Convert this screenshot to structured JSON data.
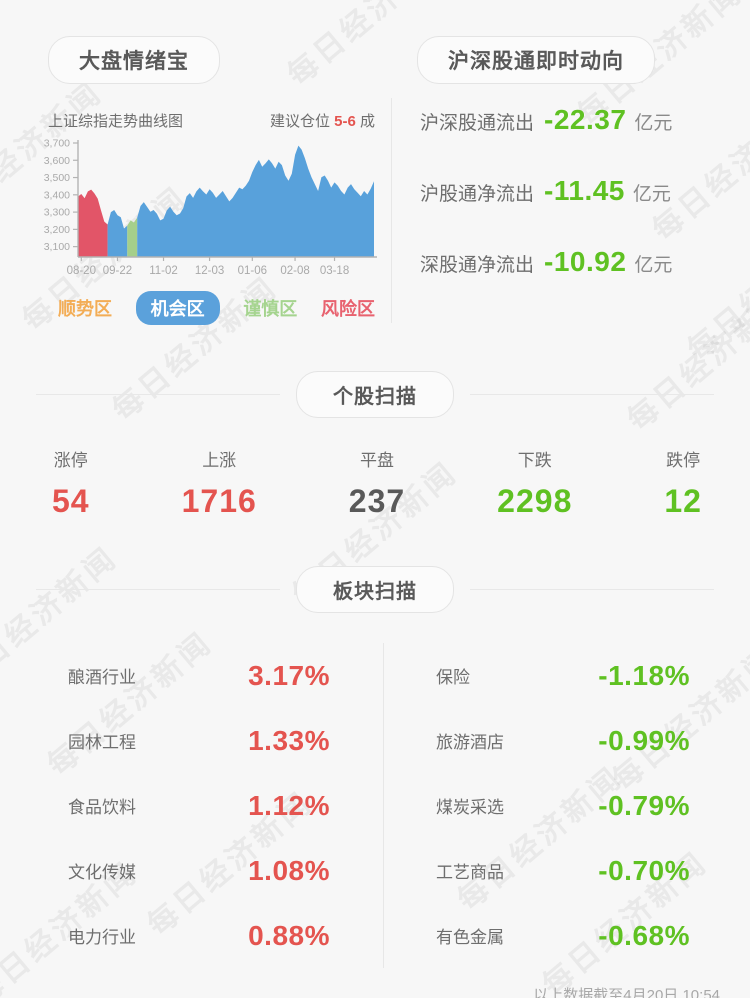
{
  "page": {
    "watermark_text": "每日经济新闻",
    "footer_note": "以上数据截至4月20日 10:54"
  },
  "header": {
    "left_title": "大盘情绪宝",
    "right_title": "沪深股通即时动向"
  },
  "chart_panel": {
    "title": "上证综指走势曲线图",
    "position_prefix": "建议仓位",
    "position_value": "5-6",
    "position_suffix": "成"
  },
  "chart_data": {
    "type": "area",
    "title": "上证综指走势曲线图",
    "x_ticks": [
      "08-20",
      "09-22",
      "11-02",
      "12-03",
      "01-06",
      "02-08",
      "03-18"
    ],
    "x_tick_indices": [
      1,
      12,
      26,
      40,
      53,
      66,
      78
    ],
    "y_ticks": [
      "3,700",
      "3,600",
      "3,500",
      "3,400",
      "3,300",
      "3,200",
      "3,100"
    ],
    "ylim": [
      3040,
      3700
    ],
    "grid": false,
    "legend_position": "bottom",
    "zone_colors": {
      "r": "#e25568",
      "o": "#58a1db",
      "c": "#a5cf8b"
    },
    "zone_names": {
      "r": "风险区",
      "o": "机会区",
      "c": "谨慎区"
    },
    "legend": [
      {
        "label": "顺势区",
        "color": "#f3ad56",
        "active": false
      },
      {
        "label": "机会区",
        "color": "#58a1db",
        "active": true
      },
      {
        "label": "谨慎区",
        "color": "#a5d48f",
        "active": false
      },
      {
        "label": "风险区",
        "color": "#e8626f",
        "active": false
      }
    ],
    "series": [
      {
        "name": "上证综指",
        "points": [
          [
            3390,
            "r"
          ],
          [
            3405,
            "r"
          ],
          [
            3380,
            "r"
          ],
          [
            3420,
            "r"
          ],
          [
            3430,
            "r"
          ],
          [
            3408,
            "r"
          ],
          [
            3378,
            "r"
          ],
          [
            3310,
            "r"
          ],
          [
            3245,
            "r"
          ],
          [
            3228,
            "o"
          ],
          [
            3300,
            "o"
          ],
          [
            3312,
            "o"
          ],
          [
            3282,
            "o"
          ],
          [
            3270,
            "o"
          ],
          [
            3205,
            "o"
          ],
          [
            3222,
            "c"
          ],
          [
            3252,
            "c"
          ],
          [
            3240,
            "c"
          ],
          [
            3268,
            "o"
          ],
          [
            3335,
            "o"
          ],
          [
            3358,
            "o"
          ],
          [
            3330,
            "o"
          ],
          [
            3302,
            "o"
          ],
          [
            3312,
            "o"
          ],
          [
            3290,
            "o"
          ],
          [
            3252,
            "o"
          ],
          [
            3262,
            "o"
          ],
          [
            3310,
            "o"
          ],
          [
            3332,
            "o"
          ],
          [
            3302,
            "o"
          ],
          [
            3282,
            "o"
          ],
          [
            3292,
            "o"
          ],
          [
            3322,
            "o"
          ],
          [
            3390,
            "o"
          ],
          [
            3410,
            "o"
          ],
          [
            3382,
            "o"
          ],
          [
            3420,
            "o"
          ],
          [
            3442,
            "o"
          ],
          [
            3420,
            "o"
          ],
          [
            3402,
            "o"
          ],
          [
            3432,
            "o"
          ],
          [
            3412,
            "o"
          ],
          [
            3382,
            "o"
          ],
          [
            3402,
            "o"
          ],
          [
            3422,
            "o"
          ],
          [
            3392,
            "o"
          ],
          [
            3362,
            "o"
          ],
          [
            3382,
            "o"
          ],
          [
            3412,
            "o"
          ],
          [
            3442,
            "o"
          ],
          [
            3432,
            "o"
          ],
          [
            3452,
            "o"
          ],
          [
            3482,
            "o"
          ],
          [
            3532,
            "o"
          ],
          [
            3572,
            "o"
          ],
          [
            3602,
            "o"
          ],
          [
            3562,
            "o"
          ],
          [
            3582,
            "o"
          ],
          [
            3605,
            "o"
          ],
          [
            3583,
            "o"
          ],
          [
            3552,
            "o"
          ],
          [
            3592,
            "o"
          ],
          [
            3572,
            "o"
          ],
          [
            3512,
            "o"
          ],
          [
            3482,
            "o"
          ],
          [
            3522,
            "o"
          ],
          [
            3632,
            "o"
          ],
          [
            3685,
            "o"
          ],
          [
            3662,
            "o"
          ],
          [
            3612,
            "o"
          ],
          [
            3552,
            "o"
          ],
          [
            3502,
            "o"
          ],
          [
            3462,
            "o"
          ],
          [
            3422,
            "o"
          ],
          [
            3502,
            "o"
          ],
          [
            3512,
            "o"
          ],
          [
            3482,
            "o"
          ],
          [
            3442,
            "o"
          ],
          [
            3472,
            "o"
          ],
          [
            3452,
            "o"
          ],
          [
            3422,
            "o"
          ],
          [
            3402,
            "o"
          ],
          [
            3442,
            "o"
          ],
          [
            3462,
            "o"
          ],
          [
            3432,
            "o"
          ],
          [
            3412,
            "o"
          ],
          [
            3392,
            "o"
          ],
          [
            3422,
            "o"
          ],
          [
            3402,
            "o"
          ],
          [
            3435,
            "o"
          ],
          [
            3478,
            "o"
          ]
        ]
      }
    ]
  },
  "flows": {
    "items": [
      {
        "label": "沪深股通流出",
        "value": "-22.37",
        "unit": "亿元"
      },
      {
        "label": "沪股通净流出",
        "value": "-11.45",
        "unit": "亿元"
      },
      {
        "label": "深股通净流出",
        "value": "-10.92",
        "unit": "亿元"
      }
    ]
  },
  "stock_scan": {
    "title": "个股扫描",
    "items": [
      {
        "label": "涨停",
        "value": "54",
        "color": "red"
      },
      {
        "label": "上涨",
        "value": "1716",
        "color": "red"
      },
      {
        "label": "平盘",
        "value": "237",
        "color": "gray"
      },
      {
        "label": "下跌",
        "value": "2298",
        "color": "green"
      },
      {
        "label": "跌停",
        "value": "12",
        "color": "green"
      }
    ]
  },
  "sector_scan": {
    "title": "板块扫描",
    "left": [
      {
        "name": "酿酒行业",
        "value": "3.17%",
        "color": "red"
      },
      {
        "name": "园林工程",
        "value": "1.33%",
        "color": "red"
      },
      {
        "name": "食品饮料",
        "value": "1.12%",
        "color": "red"
      },
      {
        "name": "文化传媒",
        "value": "1.08%",
        "color": "red"
      },
      {
        "name": "电力行业",
        "value": "0.88%",
        "color": "red"
      }
    ],
    "right": [
      {
        "name": "保险",
        "value": "-1.18%",
        "color": "green"
      },
      {
        "name": "旅游酒店",
        "value": "-0.99%",
        "color": "green"
      },
      {
        "name": "煤炭采选",
        "value": "-0.79%",
        "color": "green"
      },
      {
        "name": "工艺商品",
        "value": "-0.70%",
        "color": "green"
      },
      {
        "name": "有色金属",
        "value": "-0.68%",
        "color": "green"
      }
    ]
  }
}
